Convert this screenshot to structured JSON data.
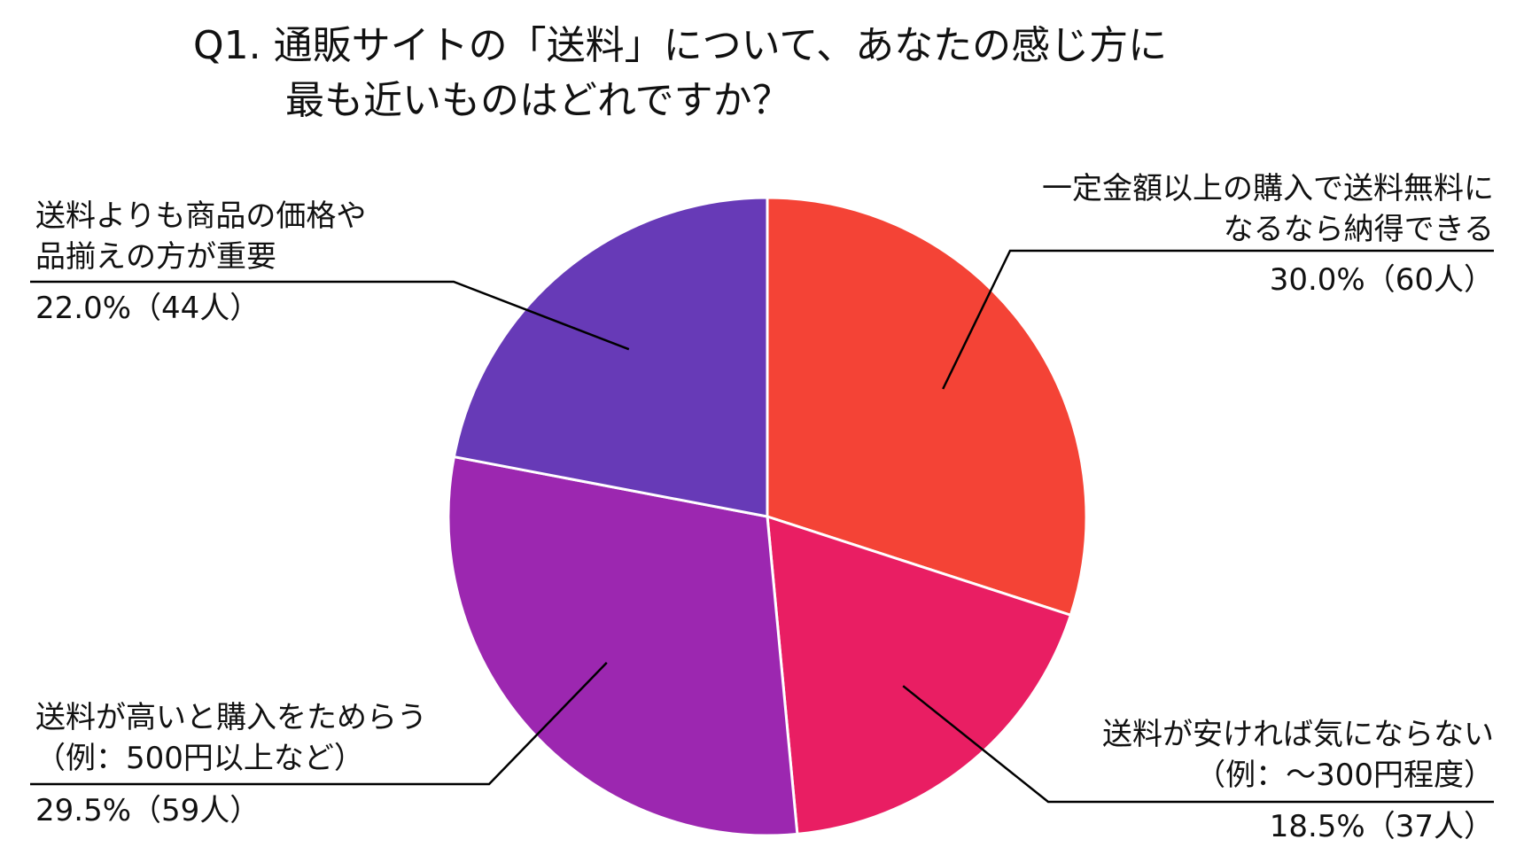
{
  "title_lines": [
    "Q1. 通販サイトの「送料」について、あなたの感じ方に",
    "最も近いものはどれですか？"
  ],
  "chart_data": {
    "type": "pie",
    "title": "Q1. 通販サイトの「送料」について、あなたの感じ方に最も近いものはどれですか？",
    "start": "12 o'clock",
    "direction": "clockwise",
    "slices": [
      {
        "label_lines": [
          "一定金額以上の購入で送料無料に",
          "なるなら納得できる"
        ],
        "value": 30.0,
        "count": 60,
        "value_text": "30.0%（60人）",
        "color": "#f44336"
      },
      {
        "label_lines": [
          "送料が安ければ気にならない",
          "（例：～300円程度）"
        ],
        "value": 18.5,
        "count": 37,
        "value_text": "18.5%（37人）",
        "color": "#e91e63"
      },
      {
        "label_lines": [
          "送料が高いと購入をためらう",
          "（例：500円以上など）"
        ],
        "value": 29.5,
        "count": 59,
        "value_text": "29.5%（59人）",
        "color": "#9c27b0"
      },
      {
        "label_lines": [
          "送料よりも商品の価格や",
          "品揃えの方が重要"
        ],
        "value": 22.0,
        "count": 44,
        "value_text": "22.0%（44人）",
        "color": "#673ab7"
      }
    ]
  }
}
